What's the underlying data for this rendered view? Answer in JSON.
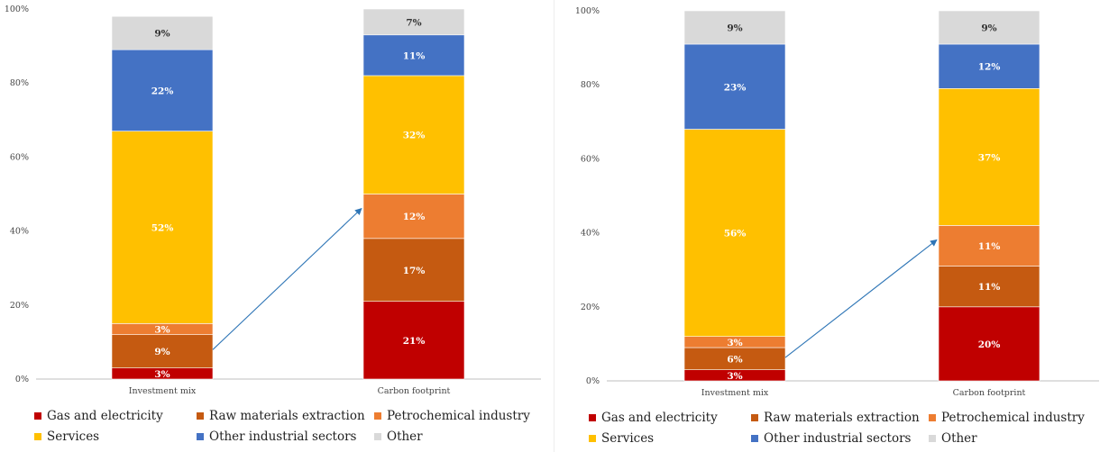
{
  "chart_data": [
    {
      "type": "bar",
      "stacked": true,
      "percent": true,
      "categories": [
        "Investment mix",
        "Carbon footprint"
      ],
      "y_ticks": [
        "0%",
        "20%",
        "40%",
        "60%",
        "80%",
        "100%"
      ],
      "ylim": [
        0,
        100
      ],
      "series": [
        {
          "name": "Gas and electricity",
          "color": "#C00000",
          "values": [
            3,
            21
          ],
          "labels": [
            "3%",
            "21%"
          ]
        },
        {
          "name": "Raw materials extraction",
          "color": "#C55A11",
          "values": [
            9,
            17
          ],
          "labels": [
            "9%",
            "17%"
          ]
        },
        {
          "name": "Petrochemical industry",
          "color": "#ED7D31",
          "values": [
            3,
            12
          ],
          "labels": [
            "3%",
            "12%"
          ]
        },
        {
          "name": "Services",
          "color": "#FFC000",
          "values": [
            52,
            32
          ],
          "labels": [
            "52%",
            "32%"
          ]
        },
        {
          "name": "Other industrial sectors",
          "color": "#4472C4",
          "values": [
            22,
            11
          ],
          "labels": [
            "22%",
            "11%"
          ]
        },
        {
          "name": "Other",
          "color": "#D9D9D9",
          "values": [
            9,
            7
          ],
          "labels": [
            "9%",
            "7%"
          ]
        }
      ],
      "grid": false,
      "legend": "bottom"
    },
    {
      "type": "bar",
      "stacked": true,
      "percent": true,
      "categories": [
        "Investment mix",
        "Carbon footprint"
      ],
      "y_ticks": [
        "0%",
        "20%",
        "40%",
        "60%",
        "80%",
        "100%"
      ],
      "ylim": [
        0,
        100
      ],
      "series": [
        {
          "name": "Gas and electricity",
          "color": "#C00000",
          "values": [
            3,
            20
          ],
          "labels": [
            "3%",
            "20%"
          ]
        },
        {
          "name": "Raw materials extraction",
          "color": "#C55A11",
          "values": [
            6,
            11
          ],
          "labels": [
            "6%",
            "11%"
          ]
        },
        {
          "name": "Petrochemical industry",
          "color": "#ED7D31",
          "values": [
            3,
            11
          ],
          "labels": [
            "3%",
            "11%"
          ]
        },
        {
          "name": "Services",
          "color": "#FFC000",
          "values": [
            56,
            37
          ],
          "labels": [
            "56%",
            "37%"
          ]
        },
        {
          "name": "Other industrial sectors",
          "color": "#4472C4",
          "values": [
            23,
            12
          ],
          "labels": [
            "23%",
            "12%"
          ]
        },
        {
          "name": "Other",
          "color": "#D9D9D9",
          "values": [
            9,
            9
          ],
          "labels": [
            "9%",
            "9%"
          ]
        }
      ],
      "grid": false,
      "legend": "bottom"
    }
  ]
}
